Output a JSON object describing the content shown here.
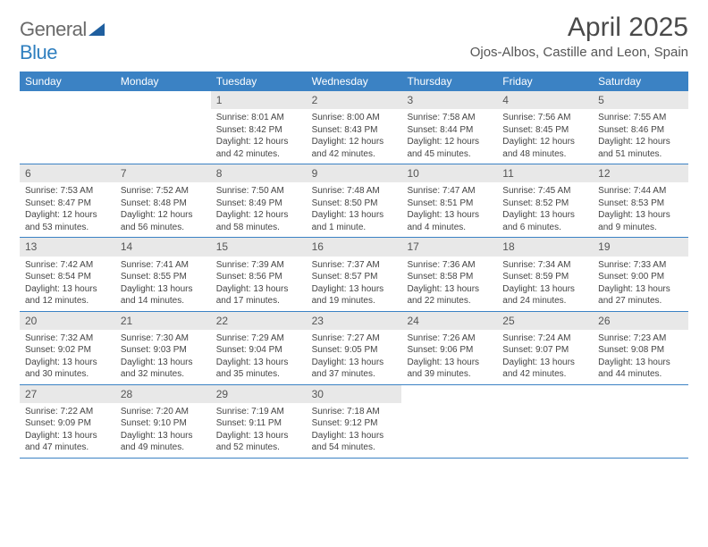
{
  "brand": {
    "part1": "General",
    "part2": "Blue"
  },
  "title": "April 2025",
  "location": "Ojos-Albos, Castille and Leon, Spain",
  "colors": {
    "header_bg": "#3b82c4",
    "header_text": "#ffffff",
    "daynum_bg": "#e8e8e8",
    "border": "#3b82c4",
    "body_text": "#444444"
  },
  "typography": {
    "title_fontsize": 30,
    "location_fontsize": 15,
    "dayheader_fontsize": 12,
    "daynum_fontsize": 12,
    "cell_fontsize": 10
  },
  "day_labels": [
    "Sunday",
    "Monday",
    "Tuesday",
    "Wednesday",
    "Thursday",
    "Friday",
    "Saturday"
  ],
  "weeks": [
    [
      null,
      null,
      {
        "n": "1",
        "sunrise": "8:01 AM",
        "sunset": "8:42 PM",
        "dl1": "Daylight: 12 hours",
        "dl2": "and 42 minutes."
      },
      {
        "n": "2",
        "sunrise": "8:00 AM",
        "sunset": "8:43 PM",
        "dl1": "Daylight: 12 hours",
        "dl2": "and 42 minutes."
      },
      {
        "n": "3",
        "sunrise": "7:58 AM",
        "sunset": "8:44 PM",
        "dl1": "Daylight: 12 hours",
        "dl2": "and 45 minutes."
      },
      {
        "n": "4",
        "sunrise": "7:56 AM",
        "sunset": "8:45 PM",
        "dl1": "Daylight: 12 hours",
        "dl2": "and 48 minutes."
      },
      {
        "n": "5",
        "sunrise": "7:55 AM",
        "sunset": "8:46 PM",
        "dl1": "Daylight: 12 hours",
        "dl2": "and 51 minutes."
      }
    ],
    [
      {
        "n": "6",
        "sunrise": "7:53 AM",
        "sunset": "8:47 PM",
        "dl1": "Daylight: 12 hours",
        "dl2": "and 53 minutes."
      },
      {
        "n": "7",
        "sunrise": "7:52 AM",
        "sunset": "8:48 PM",
        "dl1": "Daylight: 12 hours",
        "dl2": "and 56 minutes."
      },
      {
        "n": "8",
        "sunrise": "7:50 AM",
        "sunset": "8:49 PM",
        "dl1": "Daylight: 12 hours",
        "dl2": "and 58 minutes."
      },
      {
        "n": "9",
        "sunrise": "7:48 AM",
        "sunset": "8:50 PM",
        "dl1": "Daylight: 13 hours",
        "dl2": "and 1 minute."
      },
      {
        "n": "10",
        "sunrise": "7:47 AM",
        "sunset": "8:51 PM",
        "dl1": "Daylight: 13 hours",
        "dl2": "and 4 minutes."
      },
      {
        "n": "11",
        "sunrise": "7:45 AM",
        "sunset": "8:52 PM",
        "dl1": "Daylight: 13 hours",
        "dl2": "and 6 minutes."
      },
      {
        "n": "12",
        "sunrise": "7:44 AM",
        "sunset": "8:53 PM",
        "dl1": "Daylight: 13 hours",
        "dl2": "and 9 minutes."
      }
    ],
    [
      {
        "n": "13",
        "sunrise": "7:42 AM",
        "sunset": "8:54 PM",
        "dl1": "Daylight: 13 hours",
        "dl2": "and 12 minutes."
      },
      {
        "n": "14",
        "sunrise": "7:41 AM",
        "sunset": "8:55 PM",
        "dl1": "Daylight: 13 hours",
        "dl2": "and 14 minutes."
      },
      {
        "n": "15",
        "sunrise": "7:39 AM",
        "sunset": "8:56 PM",
        "dl1": "Daylight: 13 hours",
        "dl2": "and 17 minutes."
      },
      {
        "n": "16",
        "sunrise": "7:37 AM",
        "sunset": "8:57 PM",
        "dl1": "Daylight: 13 hours",
        "dl2": "and 19 minutes."
      },
      {
        "n": "17",
        "sunrise": "7:36 AM",
        "sunset": "8:58 PM",
        "dl1": "Daylight: 13 hours",
        "dl2": "and 22 minutes."
      },
      {
        "n": "18",
        "sunrise": "7:34 AM",
        "sunset": "8:59 PM",
        "dl1": "Daylight: 13 hours",
        "dl2": "and 24 minutes."
      },
      {
        "n": "19",
        "sunrise": "7:33 AM",
        "sunset": "9:00 PM",
        "dl1": "Daylight: 13 hours",
        "dl2": "and 27 minutes."
      }
    ],
    [
      {
        "n": "20",
        "sunrise": "7:32 AM",
        "sunset": "9:02 PM",
        "dl1": "Daylight: 13 hours",
        "dl2": "and 30 minutes."
      },
      {
        "n": "21",
        "sunrise": "7:30 AM",
        "sunset": "9:03 PM",
        "dl1": "Daylight: 13 hours",
        "dl2": "and 32 minutes."
      },
      {
        "n": "22",
        "sunrise": "7:29 AM",
        "sunset": "9:04 PM",
        "dl1": "Daylight: 13 hours",
        "dl2": "and 35 minutes."
      },
      {
        "n": "23",
        "sunrise": "7:27 AM",
        "sunset": "9:05 PM",
        "dl1": "Daylight: 13 hours",
        "dl2": "and 37 minutes."
      },
      {
        "n": "24",
        "sunrise": "7:26 AM",
        "sunset": "9:06 PM",
        "dl1": "Daylight: 13 hours",
        "dl2": "and 39 minutes."
      },
      {
        "n": "25",
        "sunrise": "7:24 AM",
        "sunset": "9:07 PM",
        "dl1": "Daylight: 13 hours",
        "dl2": "and 42 minutes."
      },
      {
        "n": "26",
        "sunrise": "7:23 AM",
        "sunset": "9:08 PM",
        "dl1": "Daylight: 13 hours",
        "dl2": "and 44 minutes."
      }
    ],
    [
      {
        "n": "27",
        "sunrise": "7:22 AM",
        "sunset": "9:09 PM",
        "dl1": "Daylight: 13 hours",
        "dl2": "and 47 minutes."
      },
      {
        "n": "28",
        "sunrise": "7:20 AM",
        "sunset": "9:10 PM",
        "dl1": "Daylight: 13 hours",
        "dl2": "and 49 minutes."
      },
      {
        "n": "29",
        "sunrise": "7:19 AM",
        "sunset": "9:11 PM",
        "dl1": "Daylight: 13 hours",
        "dl2": "and 52 minutes."
      },
      {
        "n": "30",
        "sunrise": "7:18 AM",
        "sunset": "9:12 PM",
        "dl1": "Daylight: 13 hours",
        "dl2": "and 54 minutes."
      },
      null,
      null,
      null
    ]
  ]
}
